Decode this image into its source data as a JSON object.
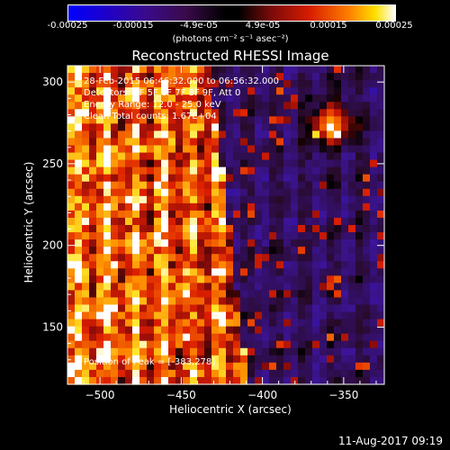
{
  "colorbar": {
    "ticks": [
      "-0.00025",
      "-0.00015",
      "-4.9e-05",
      "4.9e-05",
      "0.00015",
      "0.00025"
    ],
    "units": "(photons cm⁻² s⁻¹ asec⁻²)"
  },
  "annotations": {
    "time": "28-Feb-2015 06:46:32.000 to 06:56:32.000",
    "detectors": "Detectors: 3F 5F 6F 7F 8F 9F, Att 0",
    "energy": "Energy Range: 12.0 - 25.0 keV",
    "clean": "Clean    Total counts: 1.67E+04",
    "peak": "Position of Peak = [-383,278]"
  },
  "footer": {
    "date": "11-Aug-2017 09:19"
  },
  "chart_data": {
    "type": "heatmap",
    "title": "Reconstructed RHESSI Image",
    "xlabel": "Heliocentric X (arcsec)",
    "ylabel": "Heliocentric Y (arcsec)",
    "xlim": [
      -520,
      -325
    ],
    "ylim": [
      115,
      310
    ],
    "xticks": [
      -500,
      -450,
      -400,
      -350
    ],
    "yticks": [
      150,
      200,
      250,
      300
    ],
    "xtick_labels": [
      "−500",
      "−450",
      "−400",
      "−350"
    ],
    "ytick_labels": [
      "150",
      "200",
      "250",
      "300"
    ],
    "zlim": [
      -0.00025,
      0.00025
    ],
    "peak": [
      -383,
      278
    ],
    "grid": false
  }
}
